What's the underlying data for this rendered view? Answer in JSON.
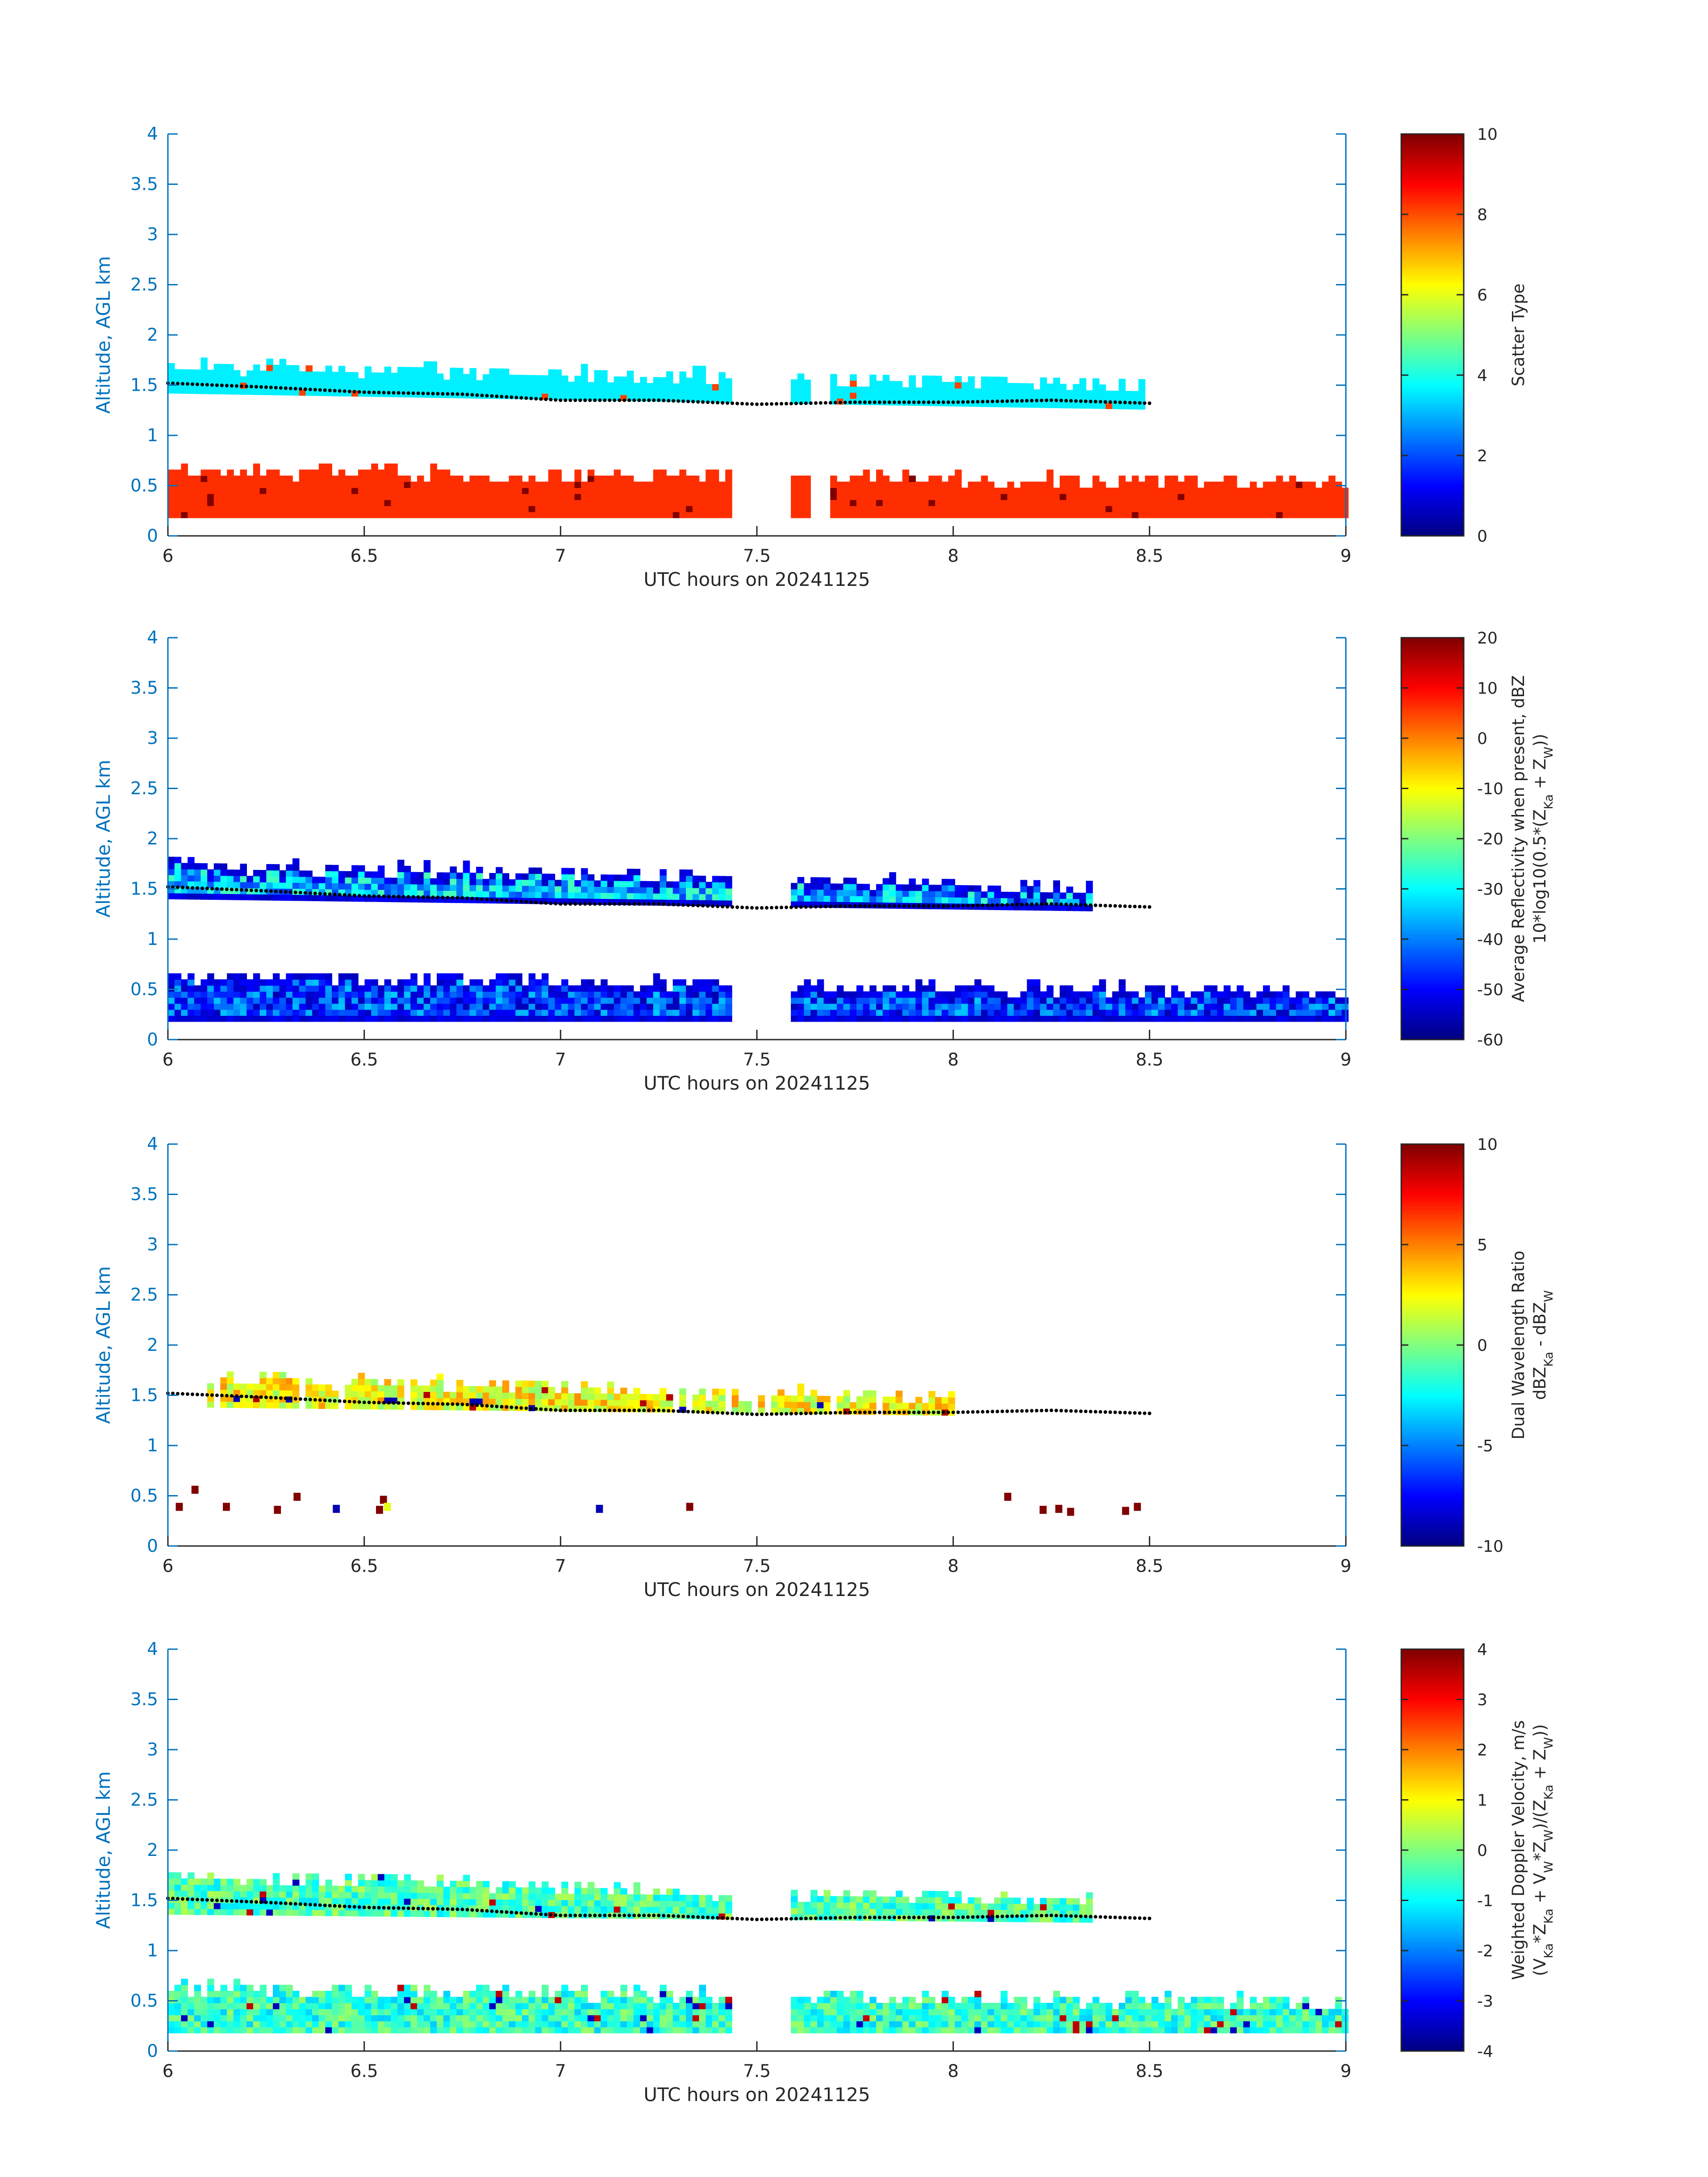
{
  "chart_data": [
    {
      "type": "heatmap",
      "panel": "scatter_type",
      "xlabel": "UTC hours on 20241125",
      "ylabel": "Altitude, AGL km",
      "xlim": [
        6,
        9
      ],
      "ylim": [
        0,
        4
      ],
      "xticks": [
        "6",
        "6.5",
        "7",
        "7.5",
        "8",
        "8.5",
        "9"
      ],
      "yticks": [
        "0",
        "0.5",
        "1",
        "1.5",
        "2",
        "2.5",
        "3",
        "3.5",
        "4"
      ],
      "colorbar": {
        "title_lines": [
          "Scatter Type"
        ],
        "range": [
          0,
          10
        ],
        "ticks": [
          "0",
          "2",
          "4",
          "6",
          "8",
          "10"
        ]
      },
      "layers": [
        {
          "desc": "cloud layer",
          "t_start": 6.0,
          "t_end": 8.48,
          "base_start": 1.42,
          "base_end": 1.26,
          "top_start": 1.66,
          "top_end": 1.48,
          "value": 3.6
        },
        {
          "desc": "low echoes",
          "t_start": 6.0,
          "t_end": 9.0,
          "base_start": 0.18,
          "base_end": 0.18,
          "top_start": 0.62,
          "top_end": 0.5,
          "value": 8.3
        }
      ],
      "gaps": [
        [
          7.42,
          7.58
        ],
        [
          7.63,
          7.68
        ]
      ],
      "line_series": {
        "name": "",
        "x": [
          6.0,
          6.25,
          6.5,
          6.75,
          7.0,
          7.25,
          7.5,
          7.75,
          8.0,
          8.25,
          8.5
        ],
        "y": [
          1.52,
          1.48,
          1.43,
          1.41,
          1.35,
          1.35,
          1.31,
          1.33,
          1.33,
          1.35,
          1.32
        ]
      }
    },
    {
      "type": "heatmap",
      "panel": "reflectivity",
      "xlabel": "UTC hours on 20241125",
      "ylabel": "Altitude, AGL km",
      "xlim": [
        6,
        9
      ],
      "ylim": [
        0,
        4
      ],
      "xticks": [
        "6",
        "6.5",
        "7",
        "7.5",
        "8",
        "8.5",
        "9"
      ],
      "yticks": [
        "0",
        "0.5",
        "1",
        "1.5",
        "2",
        "2.5",
        "3",
        "3.5",
        "4"
      ],
      "colorbar": {
        "title_lines": [
          "Average Reflectivity when present, dBZ",
          "10*log10(0.5*(Z_Ka + Z_W))"
        ],
        "range": [
          -60,
          20
        ],
        "ticks": [
          "-60",
          "-50",
          "-40",
          "-30",
          "-20",
          "-10",
          "0",
          "10",
          "20"
        ]
      },
      "layers": [
        {
          "desc": "cloud layer",
          "t_start": 6.0,
          "t_end": 8.35,
          "base_start": 1.4,
          "base_end": 1.28,
          "top_start": 1.72,
          "top_end": 1.48,
          "value": -35
        },
        {
          "desc": "low echoes",
          "t_start": 6.0,
          "t_end": 9.0,
          "base_start": 0.18,
          "base_end": 0.18,
          "top_start": 0.6,
          "top_end": 0.45,
          "value": -45
        }
      ],
      "gaps": [
        [
          7.42,
          7.58
        ]
      ],
      "line_series": {
        "name": "",
        "x": [
          6.0,
          6.25,
          6.5,
          6.75,
          7.0,
          7.25,
          7.5,
          7.75,
          8.0,
          8.25,
          8.5
        ],
        "y": [
          1.52,
          1.48,
          1.43,
          1.41,
          1.35,
          1.35,
          1.31,
          1.33,
          1.33,
          1.35,
          1.32
        ]
      }
    },
    {
      "type": "heatmap",
      "panel": "dual_wavelength_ratio",
      "xlabel": "UTC hours on 20241125",
      "ylabel": "Altitude, AGL km",
      "xlim": [
        6,
        9
      ],
      "ylim": [
        0,
        4
      ],
      "xticks": [
        "6",
        "6.5",
        "7",
        "7.5",
        "8",
        "8.5",
        "9"
      ],
      "yticks": [
        "0",
        "0.5",
        "1",
        "1.5",
        "2",
        "2.5",
        "3",
        "3.5",
        "4"
      ],
      "colorbar": {
        "title_lines": [
          "Dual Wavelength Ratio",
          "dBZ_Ka - dBZ_W"
        ],
        "range": [
          -10,
          10
        ],
        "ticks": [
          "-10",
          "-5",
          "0",
          "5",
          "10"
        ]
      },
      "layers": [
        {
          "desc": "cloud layer",
          "t_start": 6.1,
          "t_end": 8.0,
          "base_start": 1.38,
          "base_end": 1.3,
          "top_start": 1.66,
          "top_end": 1.44,
          "value": 2.5
        }
      ],
      "gaps": [],
      "line_series": {
        "name": "",
        "x": [
          6.0,
          6.25,
          6.5,
          6.75,
          7.0,
          7.25,
          7.5,
          7.75,
          8.0,
          8.25,
          8.5
        ],
        "y": [
          1.52,
          1.48,
          1.43,
          1.41,
          1.35,
          1.35,
          1.31,
          1.33,
          1.33,
          1.35,
          1.32
        ]
      }
    },
    {
      "type": "heatmap",
      "panel": "doppler_velocity",
      "xlabel": "UTC hours on 20241125",
      "ylabel": "Altitude, AGL km",
      "xlim": [
        6,
        9
      ],
      "ylim": [
        0,
        4
      ],
      "xticks": [
        "6",
        "6.5",
        "7",
        "7.5",
        "8",
        "8.5",
        "9"
      ],
      "yticks": [
        "0",
        "0.5",
        "1",
        "1.5",
        "2",
        "2.5",
        "3",
        "3.5",
        "4"
      ],
      "colorbar": {
        "title_lines": [
          "Weighted Doppler Velocity, m/s",
          "(V_Ka*Z_Ka + V_W*Z_W)/(Z_Ka + Z_W))"
        ],
        "range": [
          -4,
          4
        ],
        "ticks": [
          "-4",
          "-3",
          "-2",
          "-1",
          "0",
          "1",
          "2",
          "3",
          "4"
        ]
      },
      "layers": [
        {
          "desc": "cloud layer",
          "t_start": 6.0,
          "t_end": 8.35,
          "base_start": 1.36,
          "base_end": 1.28,
          "top_start": 1.72,
          "top_end": 1.46,
          "value": -0.4
        },
        {
          "desc": "low echoes",
          "t_start": 6.0,
          "t_end": 9.0,
          "base_start": 0.18,
          "base_end": 0.18,
          "top_start": 0.6,
          "top_end": 0.45,
          "value": -0.6
        }
      ],
      "gaps": [
        [
          7.42,
          7.58
        ]
      ],
      "line_series": {
        "name": "",
        "x": [
          6.0,
          6.25,
          6.5,
          6.75,
          7.0,
          7.25,
          7.5,
          7.75,
          8.0,
          8.25,
          8.5
        ],
        "y": [
          1.52,
          1.48,
          1.43,
          1.41,
          1.35,
          1.35,
          1.31,
          1.33,
          1.33,
          1.35,
          1.32
        ]
      }
    }
  ]
}
